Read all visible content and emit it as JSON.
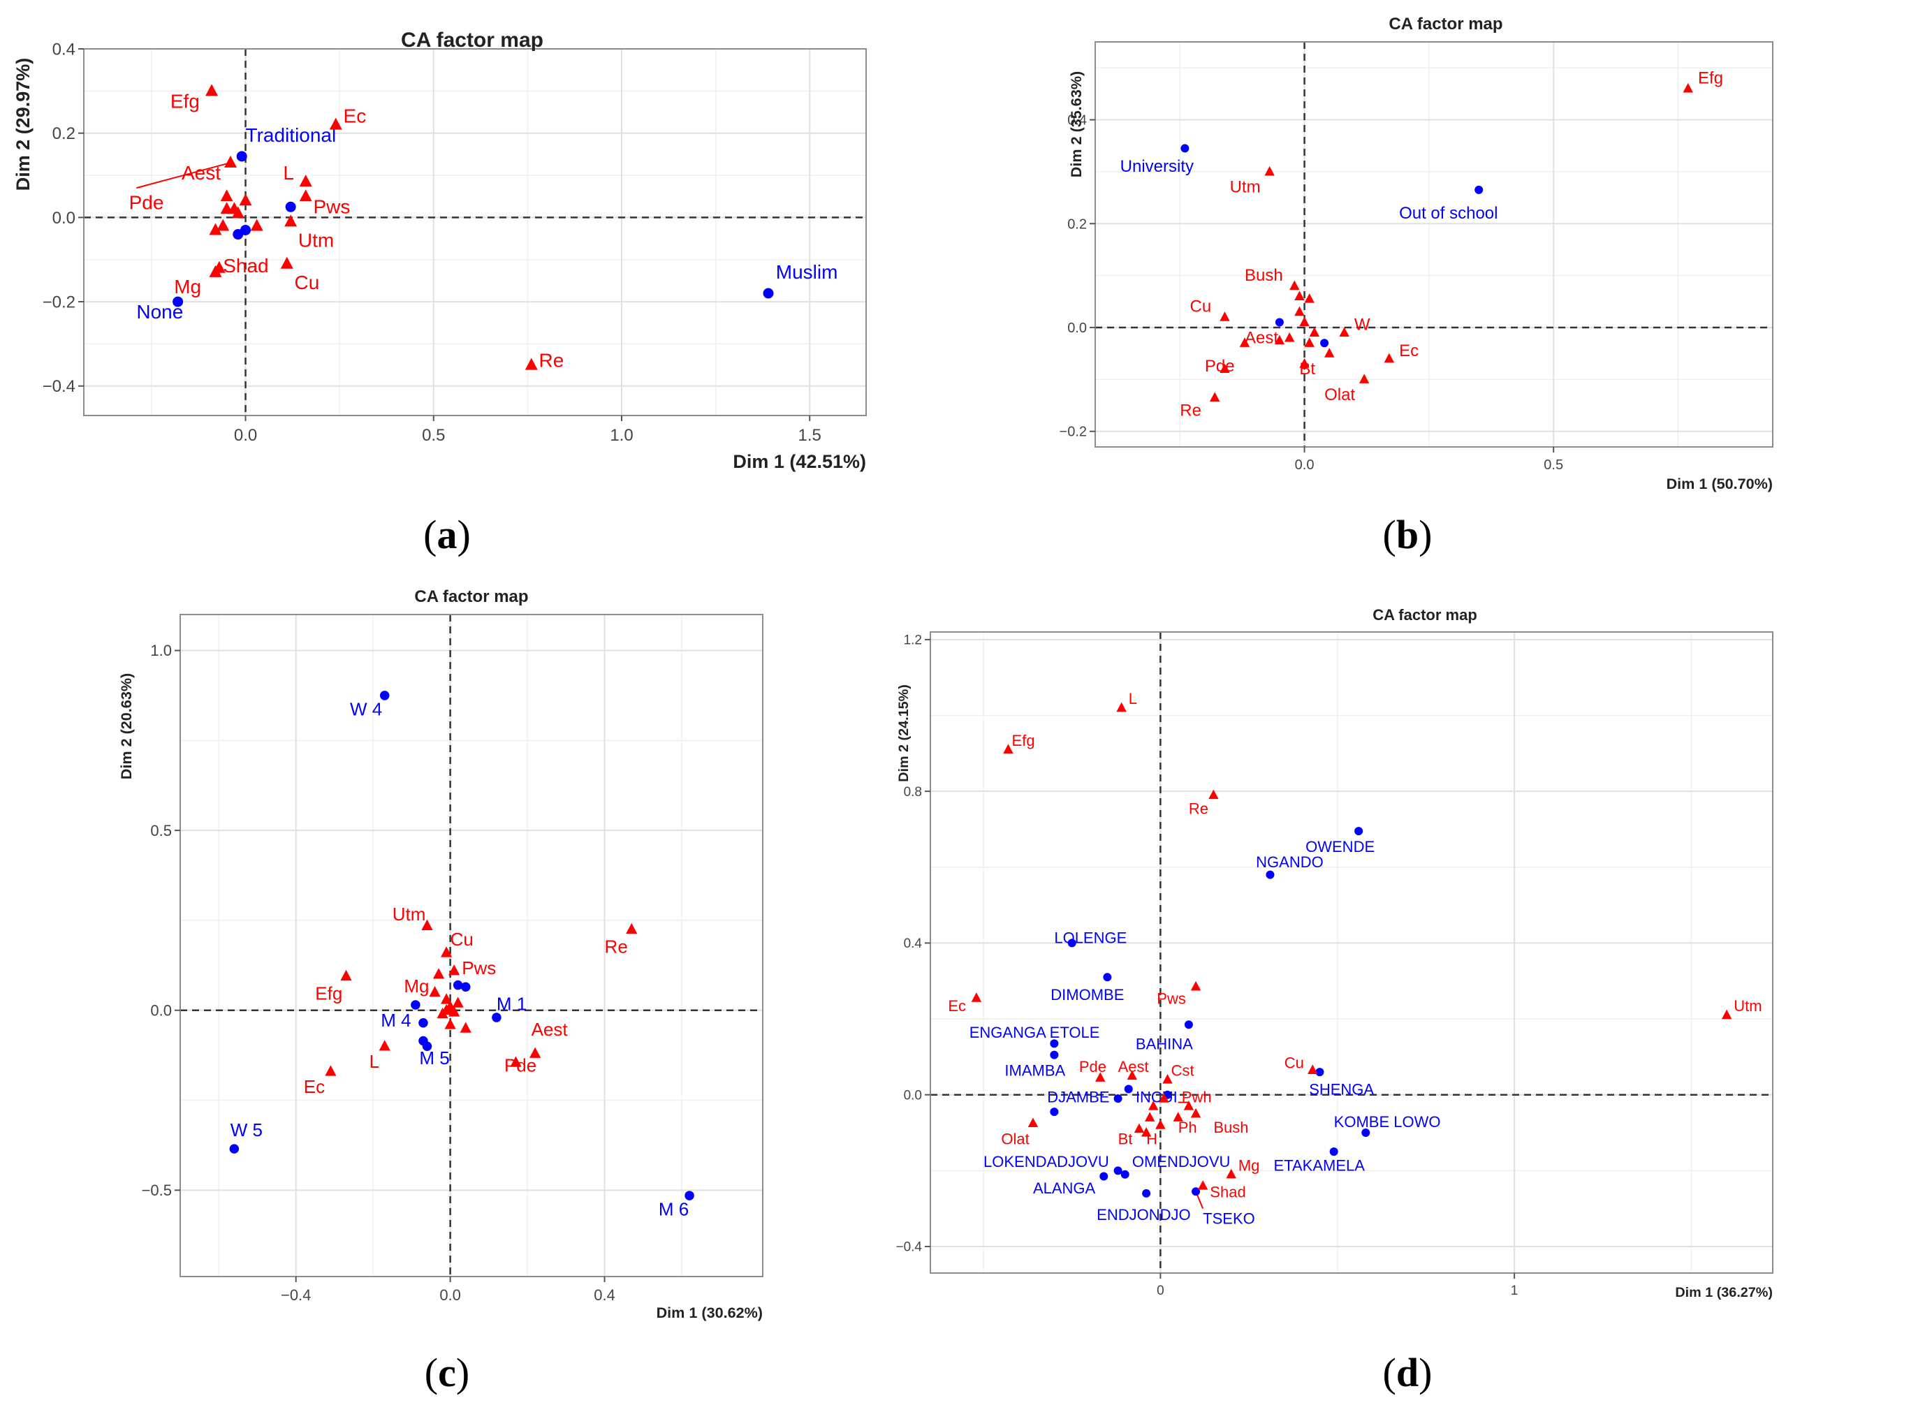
{
  "colors": {
    "col": "#ff0000",
    "row": "#0000ff",
    "grid": "#e0e0e0",
    "frame": "#8c8c8c",
    "zero": "#333333"
  },
  "chart_data": [
    {
      "panel": "a",
      "caption": "a",
      "type": "scatter",
      "title": "CA factor map",
      "xlabel": "Dim 1 (42.51%)",
      "ylabel": "Dim 2 (29.97%)",
      "xlim": [
        -0.43,
        1.65
      ],
      "ylim": [
        -0.47,
        0.4
      ],
      "xticks": [
        0.0,
        0.5,
        1.0,
        1.5
      ],
      "xtick_labels": [
        "0.0",
        "0.5",
        "1.0",
        "1.5"
      ],
      "yticks": [
        -0.4,
        -0.2,
        0.0,
        0.2,
        0.4
      ],
      "ytick_labels": [
        "−0.4",
        "−0.2",
        "0.0",
        "0.2",
        "0.4"
      ],
      "xminor": [
        -0.25,
        0.25,
        0.75,
        1.25
      ],
      "yminor": [
        -0.3,
        -0.1,
        0.1,
        0.3
      ],
      "rows": [
        {
          "label": "Traditional",
          "x": -0.01,
          "y": 0.145,
          "lx": 0.0,
          "ly": 0.18
        },
        {
          "label": "None",
          "x": -0.18,
          "y": -0.2,
          "lx": -0.29,
          "ly": -0.24
        },
        {
          "label": "Muslim",
          "x": 1.39,
          "y": -0.18,
          "lx": 1.41,
          "ly": -0.145
        },
        {
          "label": "",
          "x": 0.12,
          "y": 0.025
        },
        {
          "label": "",
          "x": -0.02,
          "y": -0.04
        },
        {
          "label": "",
          "x": 0.0,
          "y": -0.03
        }
      ],
      "cols": [
        {
          "label": "Efg",
          "x": -0.09,
          "y": 0.3,
          "lx": -0.2,
          "ly": 0.26
        },
        {
          "label": "Ec",
          "x": 0.24,
          "y": 0.22,
          "lx": 0.26,
          "ly": 0.225
        },
        {
          "label": "Aest",
          "x": -0.04,
          "y": 0.13,
          "lx": -0.17,
          "ly": 0.09
        },
        {
          "label": "Pde",
          "x": -0.05,
          "y": 0.02,
          "lx": -0.31,
          "ly": 0.02
        },
        {
          "label": "L",
          "x": 0.16,
          "y": 0.085,
          "lx": 0.1,
          "ly": 0.09
        },
        {
          "label": "Pws",
          "x": 0.16,
          "y": 0.05,
          "lx": 0.18,
          "ly": 0.01
        },
        {
          "label": "Utm",
          "x": 0.12,
          "y": -0.01,
          "lx": 0.14,
          "ly": -0.07
        },
        {
          "label": "Shad",
          "x": -0.08,
          "y": -0.03,
          "lx": -0.06,
          "ly": -0.13
        },
        {
          "label": "Cu",
          "x": 0.11,
          "y": -0.11,
          "lx": 0.13,
          "ly": -0.17
        },
        {
          "label": "Mg",
          "x": -0.08,
          "y": -0.13,
          "lx": -0.19,
          "ly": -0.18
        },
        {
          "label": "Re",
          "x": 0.76,
          "y": -0.35,
          "lx": 0.78,
          "ly": -0.355
        },
        {
          "label": "",
          "x": -0.05,
          "y": 0.05
        },
        {
          "label": "",
          "x": 0.0,
          "y": 0.04
        },
        {
          "label": "",
          "x": -0.03,
          "y": 0.02
        },
        {
          "label": "",
          "x": 0.03,
          "y": -0.02
        },
        {
          "label": "",
          "x": -0.06,
          "y": -0.02
        },
        {
          "label": "",
          "x": -0.07,
          "y": -0.12
        },
        {
          "label": "",
          "x": -0.02,
          "y": 0.01
        }
      ],
      "lines": [
        {
          "x1": -0.04,
          "y1": 0.13,
          "x2": -0.29,
          "y2": 0.07
        }
      ]
    },
    {
      "panel": "b",
      "caption": "b",
      "type": "scatter",
      "title": "CA factor map",
      "xlabel": "Dim 1 (50.70%)",
      "ylabel": "Dim 2 (35.63%)",
      "xlim": [
        -0.42,
        0.94
      ],
      "ylim": [
        -0.23,
        0.55
      ],
      "xticks": [
        0.0,
        0.5
      ],
      "xtick_labels": [
        "0.0",
        "0.5"
      ],
      "yticks": [
        -0.2,
        0.0,
        0.2,
        0.4
      ],
      "ytick_labels": [
        "−0.2",
        "0.0",
        "0.2",
        "0.4"
      ],
      "xminor": [
        -0.25,
        0.25,
        0.75
      ],
      "yminor": [
        -0.1,
        0.1,
        0.3,
        0.5
      ],
      "rows": [
        {
          "label": "University",
          "x": -0.24,
          "y": 0.345,
          "lx": -0.37,
          "ly": 0.3
        },
        {
          "label": "Out of school",
          "x": 0.35,
          "y": 0.265,
          "lx": 0.19,
          "ly": 0.21
        },
        {
          "label": "",
          "x": -0.05,
          "y": 0.01
        },
        {
          "label": "",
          "x": 0.04,
          "y": -0.03
        }
      ],
      "cols": [
        {
          "label": "Efg",
          "x": 0.77,
          "y": 0.46,
          "lx": 0.79,
          "ly": 0.47
        },
        {
          "label": "Utm",
          "x": -0.07,
          "y": 0.3,
          "lx": -0.15,
          "ly": 0.26
        },
        {
          "label": "Bush",
          "x": -0.02,
          "y": 0.08,
          "lx": -0.12,
          "ly": 0.09
        },
        {
          "label": "Cu",
          "x": -0.16,
          "y": 0.02,
          "lx": -0.23,
          "ly": 0.03
        },
        {
          "label": "W",
          "x": 0.08,
          "y": -0.01,
          "lx": 0.1,
          "ly": -0.005
        },
        {
          "label": "Aest",
          "x": -0.12,
          "y": -0.03,
          "lx": -0.12,
          "ly": -0.03
        },
        {
          "label": "Ec",
          "x": 0.17,
          "y": -0.06,
          "lx": 0.19,
          "ly": -0.055
        },
        {
          "label": "Pde",
          "x": -0.16,
          "y": -0.08,
          "lx": -0.2,
          "ly": -0.085
        },
        {
          "label": "Bt",
          "x": 0.0,
          "y": -0.07,
          "lx": -0.01,
          "ly": -0.09
        },
        {
          "label": "Olat",
          "x": 0.12,
          "y": -0.1,
          "lx": 0.04,
          "ly": -0.14
        },
        {
          "label": "Re",
          "x": -0.18,
          "y": -0.135,
          "lx": -0.25,
          "ly": -0.17
        },
        {
          "label": "",
          "x": -0.01,
          "y": 0.06
        },
        {
          "label": "",
          "x": 0.01,
          "y": 0.055
        },
        {
          "label": "",
          "x": -0.01,
          "y": 0.03
        },
        {
          "label": "",
          "x": 0.0,
          "y": 0.01
        },
        {
          "label": "",
          "x": 0.02,
          "y": -0.01
        },
        {
          "label": "",
          "x": -0.03,
          "y": -0.02
        },
        {
          "label": "",
          "x": 0.05,
          "y": -0.05
        },
        {
          "label": "",
          "x": 0.01,
          "y": -0.03
        },
        {
          "label": "",
          "x": -0.05,
          "y": -0.025
        }
      ],
      "lines": []
    },
    {
      "panel": "c",
      "caption": "c",
      "type": "scatter",
      "title": "CA factor map",
      "xlabel": "Dim 1 (30.62%)",
      "ylabel": "Dim 2 (20.63%)",
      "xlim": [
        -0.7,
        0.81
      ],
      "ylim": [
        -0.74,
        1.1
      ],
      "xticks": [
        -0.4,
        0.0,
        0.4
      ],
      "xtick_labels": [
        "−0.4",
        "0.0",
        "0.4"
      ],
      "yticks": [
        -0.5,
        0.0,
        0.5,
        1.0
      ],
      "ytick_labels": [
        "−0.5",
        "0.0",
        "0.5",
        "1.0"
      ],
      "xminor": [
        -0.6,
        -0.2,
        0.2,
        0.6
      ],
      "yminor": [
        -0.25,
        0.25,
        0.75
      ],
      "rows": [
        {
          "label": "W 4",
          "x": -0.17,
          "y": 0.875,
          "lx": -0.26,
          "ly": 0.82
        },
        {
          "label": "W 5",
          "x": -0.56,
          "y": -0.385,
          "lx": -0.57,
          "ly": -0.35
        },
        {
          "label": "M 6",
          "x": 0.62,
          "y": -0.515,
          "lx": 0.54,
          "ly": -0.57
        },
        {
          "label": "M 1",
          "x": 0.12,
          "y": -0.02,
          "lx": 0.12,
          "ly": 0.0
        },
        {
          "label": "M 4",
          "x": -0.07,
          "y": -0.035,
          "lx": -0.18,
          "ly": -0.045
        },
        {
          "label": "M 5",
          "x": -0.07,
          "y": -0.085,
          "lx": -0.08,
          "ly": -0.15
        },
        {
          "label": "",
          "x": 0.02,
          "y": 0.07
        },
        {
          "label": "",
          "x": 0.04,
          "y": 0.065
        },
        {
          "label": "",
          "x": -0.09,
          "y": 0.015
        },
        {
          "label": "",
          "x": -0.06,
          "y": -0.1
        }
      ],
      "cols": [
        {
          "label": "Utm",
          "x": -0.06,
          "y": 0.235,
          "lx": -0.15,
          "ly": 0.25
        },
        {
          "label": "Cu",
          "x": -0.01,
          "y": 0.16,
          "lx": 0.0,
          "ly": 0.18
        },
        {
          "label": "Pws",
          "x": 0.01,
          "y": 0.11,
          "lx": 0.03,
          "ly": 0.1
        },
        {
          "label": "Re",
          "x": 0.47,
          "y": 0.225,
          "lx": 0.4,
          "ly": 0.16
        },
        {
          "label": "Efg",
          "x": -0.27,
          "y": 0.095,
          "lx": -0.35,
          "ly": 0.03
        },
        {
          "label": "Mg",
          "x": -0.03,
          "y": 0.1,
          "lx": -0.12,
          "ly": 0.05
        },
        {
          "label": "Aest",
          "x": 0.22,
          "y": -0.12,
          "lx": 0.21,
          "ly": -0.07
        },
        {
          "label": "Pde",
          "x": 0.17,
          "y": -0.145,
          "lx": 0.14,
          "ly": -0.17
        },
        {
          "label": "L",
          "x": -0.17,
          "y": -0.1,
          "lx": -0.21,
          "ly": -0.16
        },
        {
          "label": "Ec",
          "x": -0.31,
          "y": -0.17,
          "lx": -0.38,
          "ly": -0.23
        },
        {
          "label": "",
          "x": -0.04,
          "y": 0.05
        },
        {
          "label": "",
          "x": -0.01,
          "y": 0.03
        },
        {
          "label": "",
          "x": 0.0,
          "y": 0.01
        },
        {
          "label": "",
          "x": 0.01,
          "y": -0.005
        },
        {
          "label": "",
          "x": -0.02,
          "y": -0.01
        },
        {
          "label": "",
          "x": 0.04,
          "y": -0.05
        },
        {
          "label": "",
          "x": 0.0,
          "y": -0.04
        },
        {
          "label": "",
          "x": 0.02,
          "y": 0.02
        },
        {
          "label": "",
          "x": -0.01,
          "y": 0.0
        }
      ],
      "lines": []
    },
    {
      "panel": "d",
      "caption": "d",
      "type": "scatter",
      "title": "CA factor map",
      "xlabel": "Dim 1 (36.27%)",
      "ylabel": "Dim 2 (24.15%)",
      "xlim": [
        -0.65,
        1.73
      ],
      "ylim": [
        -0.47,
        1.22
      ],
      "xticks": [
        0,
        1
      ],
      "xtick_labels": [
        "0",
        "1"
      ],
      "yticks": [
        -0.4,
        0.0,
        0.4,
        0.8,
        1.2
      ],
      "ytick_labels": [
        "−0.4",
        "0.0",
        "0.4",
        "0.8",
        "1.2"
      ],
      "xminor": [
        -0.5,
        0.5,
        1.5
      ],
      "yminor": [
        -0.2,
        0.2,
        0.6,
        1.0
      ],
      "rows": [
        {
          "label": "OWENDE",
          "x": 0.56,
          "y": 0.695,
          "lx": 0.41,
          "ly": 0.64
        },
        {
          "label": "NGANDO",
          "x": 0.31,
          "y": 0.58,
          "lx": 0.27,
          "ly": 0.6
        },
        {
          "label": "LOLENGE",
          "x": -0.25,
          "y": 0.4,
          "lx": -0.3,
          "ly": 0.4
        },
        {
          "label": "DIMOMBE",
          "x": -0.15,
          "y": 0.31,
          "lx": -0.31,
          "ly": 0.25
        },
        {
          "label": "ENGANGA ETOLE",
          "x": -0.3,
          "y": 0.135,
          "lx": -0.54,
          "ly": 0.15
        },
        {
          "label": "BAHINA",
          "x": 0.08,
          "y": 0.185,
          "lx": -0.07,
          "ly": 0.12
        },
        {
          "label": "IMAMBA",
          "x": -0.3,
          "y": 0.105,
          "lx": -0.44,
          "ly": 0.05
        },
        {
          "label": "SHENGA",
          "x": 0.45,
          "y": 0.06,
          "lx": 0.42,
          "ly": 0.0
        },
        {
          "label": "DJAMBE",
          "x": -0.12,
          "y": -0.01,
          "lx": -0.32,
          "ly": -0.02
        },
        {
          "label": "INCUI",
          "x": 0.02,
          "y": 0.0,
          "lx": -0.07,
          "ly": -0.02
        },
        {
          "label": "KOMBE LOWO",
          "x": 0.58,
          "y": -0.1,
          "lx": 0.49,
          "ly": -0.085
        },
        {
          "label": "ETAKAMELA",
          "x": 0.49,
          "y": -0.15,
          "lx": 0.32,
          "ly": -0.2
        },
        {
          "label": "LOKENDADJOVU",
          "x": -0.16,
          "y": -0.215,
          "lx": -0.5,
          "ly": -0.19
        },
        {
          "label": "OMENDJOVU",
          "x": -0.1,
          "y": -0.21,
          "lx": -0.08,
          "ly": -0.19
        },
        {
          "label": "ALANGA",
          "x": -0.12,
          "y": -0.2,
          "lx": -0.36,
          "ly": -0.26
        },
        {
          "label": "ENDJONDJO",
          "x": -0.04,
          "y": -0.26,
          "lx": -0.18,
          "ly": -0.33
        },
        {
          "label": "TSEKO",
          "x": 0.1,
          "y": -0.255,
          "lx": 0.12,
          "ly": -0.34
        },
        {
          "label": "",
          "x": -0.3,
          "y": -0.045
        },
        {
          "label": "",
          "x": -0.09,
          "y": 0.015
        }
      ],
      "cols": [
        {
          "label": "L",
          "x": -0.11,
          "y": 1.02,
          "lx": -0.09,
          "ly": 1.03
        },
        {
          "label": "Efg",
          "x": -0.43,
          "y": 0.91,
          "lx": -0.42,
          "ly": 0.92
        },
        {
          "label": "Re",
          "x": 0.15,
          "y": 0.79,
          "lx": 0.08,
          "ly": 0.74
        },
        {
          "label": "Ec",
          "x": -0.52,
          "y": 0.255,
          "lx": -0.6,
          "ly": 0.22
        },
        {
          "label": "Pws",
          "x": 0.1,
          "y": 0.285,
          "lx": -0.01,
          "ly": 0.24
        },
        {
          "label": "Cu",
          "x": 0.43,
          "y": 0.065,
          "lx": 0.35,
          "ly": 0.07
        },
        {
          "label": "Utm",
          "x": 1.6,
          "y": 0.21,
          "lx": 1.62,
          "ly": 0.22
        },
        {
          "label": "Pde",
          "x": -0.17,
          "y": 0.045,
          "lx": -0.23,
          "ly": 0.06
        },
        {
          "label": "Aest",
          "x": -0.08,
          "y": 0.05,
          "lx": -0.12,
          "ly": 0.06
        },
        {
          "label": "Cst",
          "x": 0.02,
          "y": 0.04,
          "lx": 0.03,
          "ly": 0.05
        },
        {
          "label": "Pwh",
          "x": 0.08,
          "y": -0.03,
          "lx": 0.06,
          "ly": -0.02
        },
        {
          "label": "Olat",
          "x": -0.36,
          "y": -0.075,
          "lx": -0.45,
          "ly": -0.13
        },
        {
          "label": "Bt",
          "x": -0.06,
          "y": -0.09,
          "lx": -0.12,
          "ly": -0.13
        },
        {
          "label": "H",
          "x": -0.04,
          "y": -0.1,
          "lx": -0.04,
          "ly": -0.13
        },
        {
          "label": "Ph",
          "x": 0.0,
          "y": -0.08,
          "lx": 0.05,
          "ly": -0.1
        },
        {
          "label": "Bush",
          "x": 0.1,
          "y": -0.05,
          "lx": 0.15,
          "ly": -0.1
        },
        {
          "label": "Mg",
          "x": 0.2,
          "y": -0.21,
          "lx": 0.22,
          "ly": -0.2
        },
        {
          "label": "Shad",
          "x": 0.12,
          "y": -0.24,
          "lx": 0.14,
          "ly": -0.27
        },
        {
          "label": "",
          "x": -0.02,
          "y": -0.03
        },
        {
          "label": "",
          "x": 0.05,
          "y": -0.06
        },
        {
          "label": "",
          "x": 0.01,
          "y": -0.01
        },
        {
          "label": "",
          "x": -0.03,
          "y": -0.06
        }
      ],
      "lines": [
        {
          "x1": 0.1,
          "y1": -0.255,
          "x2": 0.12,
          "y2": -0.3
        },
        {
          "x1": 0.05,
          "y1": -0.02,
          "x2": 0.08,
          "y2": -0.02
        }
      ]
    }
  ]
}
